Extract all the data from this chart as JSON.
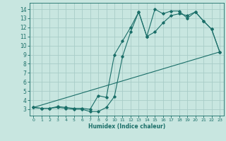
{
  "xlabel": "Humidex (Indice chaleur)",
  "bg_color": "#c8e6e0",
  "grid_color": "#a8ccc8",
  "line_color": "#1a6e68",
  "xlim": [
    -0.5,
    23.5
  ],
  "ylim": [
    2.3,
    14.7
  ],
  "xticks": [
    0,
    1,
    2,
    3,
    4,
    5,
    6,
    7,
    8,
    9,
    10,
    11,
    12,
    13,
    14,
    15,
    16,
    17,
    18,
    19,
    20,
    21,
    22,
    23
  ],
  "yticks": [
    3,
    4,
    5,
    6,
    7,
    8,
    9,
    10,
    11,
    12,
    13,
    14
  ],
  "line1_x": [
    0,
    1,
    2,
    3,
    4,
    5,
    6,
    7,
    8,
    9,
    10,
    11,
    12,
    13,
    14,
    15,
    16,
    17,
    18,
    19,
    20,
    21,
    22,
    23
  ],
  "line1_y": [
    3.2,
    3.1,
    3.1,
    3.2,
    3.1,
    3.0,
    3.0,
    2.75,
    2.75,
    3.2,
    4.4,
    8.8,
    11.5,
    13.7,
    11.0,
    14.0,
    13.5,
    13.8,
    13.8,
    13.0,
    13.7,
    12.7,
    11.8,
    9.3
  ],
  "line2_x": [
    0,
    1,
    2,
    3,
    4,
    5,
    6,
    7,
    8,
    9,
    10,
    11,
    12,
    13,
    14,
    15,
    16,
    17,
    18,
    19,
    20,
    21,
    22,
    23
  ],
  "line2_y": [
    3.2,
    3.1,
    3.1,
    3.3,
    3.2,
    3.1,
    3.1,
    3.0,
    4.5,
    4.3,
    9.0,
    10.5,
    12.0,
    13.7,
    11.0,
    11.5,
    12.5,
    13.3,
    13.5,
    13.3,
    13.7,
    12.7,
    11.8,
    9.3
  ],
  "line3_x": [
    0,
    23
  ],
  "line3_y": [
    3.2,
    9.3
  ]
}
